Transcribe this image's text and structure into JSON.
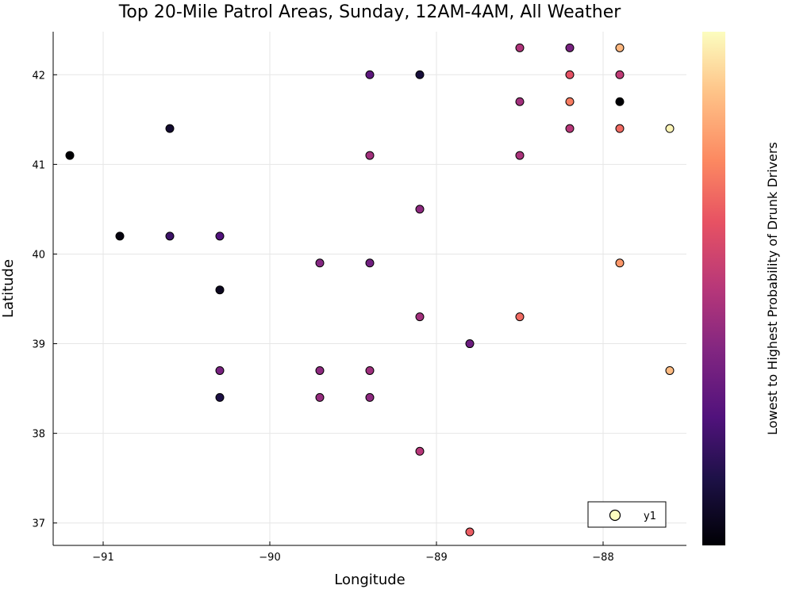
{
  "chart_data": {
    "type": "scatter",
    "title": "Top 20-Mile Patrol Areas, Sunday, 12AM-4AM, All Weather",
    "xlabel": "Longitude",
    "ylabel": "Latitude",
    "colorbar_label": "Lowest to Highest Probability of Drunk Drivers",
    "xlim": [
      -91.3,
      -87.5
    ],
    "ylim": [
      36.75,
      42.48
    ],
    "xticks": [
      -91,
      -90,
      -89,
      -88
    ],
    "xtick_labels": [
      "−91",
      "−90",
      "−89",
      "−88"
    ],
    "yticks": [
      37,
      38,
      39,
      40,
      41,
      42
    ],
    "ytick_labels": [
      "37",
      "38",
      "39",
      "40",
      "41",
      "42"
    ],
    "grid": true,
    "legend_position": "bottom-right",
    "colormap": "magma",
    "series": [
      {
        "name": "y1",
        "points": [
          {
            "x": -91.2,
            "y": 41.1,
            "v": 0.0
          },
          {
            "x": -90.9,
            "y": 40.2,
            "v": 0.02
          },
          {
            "x": -90.6,
            "y": 41.4,
            "v": 0.08
          },
          {
            "x": -90.6,
            "y": 40.2,
            "v": 0.2
          },
          {
            "x": -90.3,
            "y": 40.2,
            "v": 0.25
          },
          {
            "x": -90.3,
            "y": 39.6,
            "v": 0.05
          },
          {
            "x": -90.3,
            "y": 38.7,
            "v": 0.35
          },
          {
            "x": -90.3,
            "y": 38.4,
            "v": 0.12
          },
          {
            "x": -89.7,
            "y": 39.9,
            "v": 0.38
          },
          {
            "x": -89.7,
            "y": 38.7,
            "v": 0.4
          },
          {
            "x": -89.7,
            "y": 38.4,
            "v": 0.42
          },
          {
            "x": -89.4,
            "y": 42.0,
            "v": 0.28
          },
          {
            "x": -89.4,
            "y": 41.1,
            "v": 0.45
          },
          {
            "x": -89.4,
            "y": 39.9,
            "v": 0.33
          },
          {
            "x": -89.4,
            "y": 38.7,
            "v": 0.44
          },
          {
            "x": -89.4,
            "y": 38.4,
            "v": 0.4
          },
          {
            "x": -89.1,
            "y": 42.0,
            "v": 0.1
          },
          {
            "x": -89.1,
            "y": 40.5,
            "v": 0.4
          },
          {
            "x": -89.1,
            "y": 39.3,
            "v": 0.45
          },
          {
            "x": -89.1,
            "y": 37.8,
            "v": 0.5
          },
          {
            "x": -88.8,
            "y": 39.0,
            "v": 0.32
          },
          {
            "x": -88.8,
            "y": 36.9,
            "v": 0.65
          },
          {
            "x": -88.5,
            "y": 42.3,
            "v": 0.48
          },
          {
            "x": -88.5,
            "y": 41.7,
            "v": 0.45
          },
          {
            "x": -88.5,
            "y": 41.1,
            "v": 0.47
          },
          {
            "x": -88.5,
            "y": 39.3,
            "v": 0.68
          },
          {
            "x": -88.2,
            "y": 42.3,
            "v": 0.35
          },
          {
            "x": -88.2,
            "y": 42.0,
            "v": 0.62
          },
          {
            "x": -88.2,
            "y": 41.7,
            "v": 0.72
          },
          {
            "x": -88.2,
            "y": 41.4,
            "v": 0.5
          },
          {
            "x": -87.9,
            "y": 42.3,
            "v": 0.85
          },
          {
            "x": -87.9,
            "y": 42.0,
            "v": 0.52
          },
          {
            "x": -87.9,
            "y": 41.7,
            "v": 0.0
          },
          {
            "x": -87.9,
            "y": 41.4,
            "v": 0.68
          },
          {
            "x": -87.9,
            "y": 39.9,
            "v": 0.78
          },
          {
            "x": -87.6,
            "y": 41.4,
            "v": 0.98
          },
          {
            "x": -87.6,
            "y": 38.7,
            "v": 0.86
          }
        ]
      }
    ],
    "colors": {
      "axis": "#000000",
      "grid": "#e6e6e6",
      "marker_stroke": "#000000",
      "legend_marker": "#fcfdbf"
    }
  }
}
